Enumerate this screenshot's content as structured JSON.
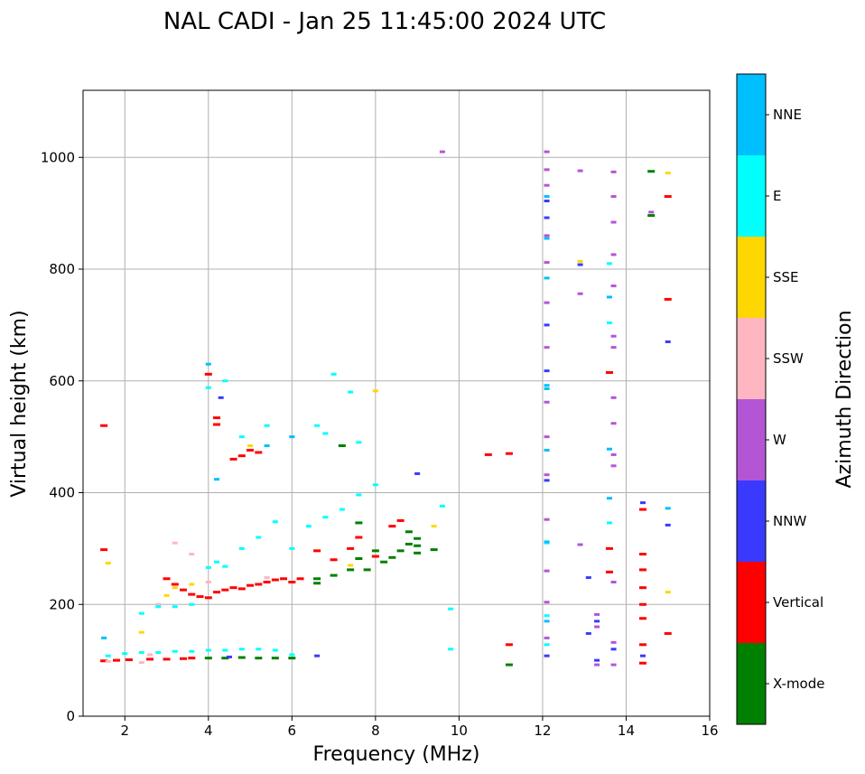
{
  "chart_data": {
    "type": "scatter",
    "title": "NAL CADI - Jan 25 11:45:00 2024 UTC",
    "xlabel": "Frequency (MHz)",
    "ylabel": "Virtual height (km)",
    "xlim": [
      1,
      16
    ],
    "ylim": [
      0,
      1120
    ],
    "xticks": [
      2,
      4,
      6,
      8,
      10,
      12,
      14,
      16
    ],
    "yticks": [
      0,
      200,
      400,
      600,
      800,
      1000
    ],
    "grid": true,
    "colorbar": {
      "label": "Azimuth Direction",
      "categories": [
        {
          "name": "X-mode",
          "color": "#008000"
        },
        {
          "name": "Vertical",
          "color": "#ff0000"
        },
        {
          "name": "NNW",
          "color": "#3a3aff"
        },
        {
          "name": "W",
          "color": "#b455d6"
        },
        {
          "name": "SSW",
          "color": "#ffb6c1"
        },
        {
          "name": "SSE",
          "color": "#ffd700"
        },
        {
          "name": "E",
          "color": "#00ffff"
        },
        {
          "name": "NNE",
          "color": "#00bfff"
        }
      ]
    },
    "series": [
      {
        "name": "X-mode",
        "points": [
          [
            4.0,
            104
          ],
          [
            4.4,
            104
          ],
          [
            4.8,
            105
          ],
          [
            5.2,
            104
          ],
          [
            5.6,
            104
          ],
          [
            6.0,
            104
          ],
          [
            6.6,
            238
          ],
          [
            7.0,
            252
          ],
          [
            7.4,
            262
          ],
          [
            7.6,
            282
          ],
          [
            7.8,
            262
          ],
          [
            8.0,
            296
          ],
          [
            8.2,
            276
          ],
          [
            8.4,
            284
          ],
          [
            8.6,
            296
          ],
          [
            8.8,
            308
          ],
          [
            9.0,
            318
          ],
          [
            9.0,
            292
          ],
          [
            9.4,
            298
          ],
          [
            6.6,
            246
          ],
          [
            7.2,
            484
          ],
          [
            7.6,
            346
          ],
          [
            8.8,
            330
          ],
          [
            9.0,
            305
          ],
          [
            11.2,
            92
          ],
          [
            14.6,
            896
          ],
          [
            14.6,
            975
          ]
        ]
      },
      {
        "name": "Vertical",
        "points": [
          [
            1.5,
            99
          ],
          [
            1.8,
            100
          ],
          [
            2.1,
            101
          ],
          [
            2.6,
            102
          ],
          [
            3.0,
            102
          ],
          [
            3.4,
            103
          ],
          [
            3.6,
            104
          ],
          [
            3.0,
            246
          ],
          [
            3.2,
            236
          ],
          [
            3.4,
            226
          ],
          [
            3.6,
            218
          ],
          [
            3.8,
            214
          ],
          [
            4.0,
            212
          ],
          [
            4.2,
            222
          ],
          [
            4.4,
            226
          ],
          [
            4.6,
            230
          ],
          [
            4.8,
            228
          ],
          [
            5.0,
            234
          ],
          [
            5.2,
            236
          ],
          [
            5.4,
            240
          ],
          [
            5.6,
            244
          ],
          [
            5.8,
            246
          ],
          [
            6.0,
            240
          ],
          [
            6.2,
            246
          ],
          [
            4.2,
            534
          ],
          [
            4.2,
            522
          ],
          [
            4.6,
            460
          ],
          [
            4.8,
            466
          ],
          [
            5.0,
            476
          ],
          [
            5.2,
            472
          ],
          [
            6.6,
            296
          ],
          [
            7.0,
            280
          ],
          [
            7.4,
            300
          ],
          [
            7.6,
            320
          ],
          [
            8.0,
            286
          ],
          [
            8.4,
            340
          ],
          [
            8.6,
            350
          ],
          [
            10.7,
            468
          ],
          [
            11.2,
            470
          ],
          [
            11.2,
            128
          ],
          [
            13.6,
            615
          ],
          [
            13.6,
            300
          ],
          [
            13.6,
            258
          ],
          [
            14.4,
            370
          ],
          [
            14.4,
            290
          ],
          [
            14.4,
            262
          ],
          [
            14.4,
            230
          ],
          [
            14.4,
            200
          ],
          [
            14.4,
            128
          ],
          [
            14.4,
            95
          ],
          [
            14.4,
            175
          ],
          [
            15.0,
            930
          ],
          [
            15.0,
            746
          ],
          [
            15.0,
            148
          ],
          [
            4.0,
            612
          ],
          [
            1.5,
            520
          ],
          [
            1.5,
            298
          ]
        ]
      },
      {
        "name": "NNW",
        "points": [
          [
            4.3,
            570
          ],
          [
            4.5,
            106
          ],
          [
            6.6,
            108
          ],
          [
            12.1,
            922
          ],
          [
            12.1,
            892
          ],
          [
            12.1,
            700
          ],
          [
            12.1,
            618
          ],
          [
            12.1,
            422
          ],
          [
            12.1,
            108
          ],
          [
            12.9,
            808
          ],
          [
            13.1,
            248
          ],
          [
            13.1,
            148
          ],
          [
            13.3,
            170
          ],
          [
            13.3,
            100
          ],
          [
            13.7,
            120
          ],
          [
            14.4,
            382
          ],
          [
            14.4,
            108
          ],
          [
            15.0,
            670
          ],
          [
            15.0,
            342
          ],
          [
            9.0,
            434
          ]
        ]
      },
      {
        "name": "W",
        "points": [
          [
            12.1,
            1010
          ],
          [
            12.1,
            978
          ],
          [
            12.1,
            950
          ],
          [
            12.1,
            860
          ],
          [
            12.1,
            812
          ],
          [
            12.1,
            740
          ],
          [
            12.1,
            660
          ],
          [
            12.1,
            562
          ],
          [
            12.1,
            500
          ],
          [
            12.1,
            432
          ],
          [
            12.1,
            352
          ],
          [
            12.1,
            260
          ],
          [
            12.1,
            204
          ],
          [
            12.1,
            140
          ],
          [
            12.9,
            976
          ],
          [
            12.9,
            756
          ],
          [
            12.9,
            307
          ],
          [
            13.3,
            182
          ],
          [
            13.3,
            160
          ],
          [
            13.3,
            92
          ],
          [
            13.7,
            974
          ],
          [
            13.7,
            930
          ],
          [
            13.7,
            884
          ],
          [
            13.7,
            826
          ],
          [
            13.7,
            770
          ],
          [
            13.7,
            680
          ],
          [
            13.7,
            660
          ],
          [
            13.7,
            570
          ],
          [
            13.7,
            524
          ],
          [
            13.7,
            468
          ],
          [
            13.7,
            448
          ],
          [
            13.7,
            240
          ],
          [
            13.7,
            132
          ],
          [
            13.7,
            92
          ],
          [
            14.6,
            902
          ],
          [
            9.6,
            1010
          ]
        ]
      },
      {
        "name": "SSW",
        "points": [
          [
            1.6,
            98
          ],
          [
            2.4,
            96
          ],
          [
            2.6,
            110
          ],
          [
            2.8,
            200
          ],
          [
            3.2,
            310
          ],
          [
            3.6,
            290
          ],
          [
            4.0,
            240
          ],
          [
            5.4,
            248
          ],
          [
            6.0,
            500
          ]
        ]
      },
      {
        "name": "SSE",
        "points": [
          [
            1.6,
            274
          ],
          [
            2.4,
            150
          ],
          [
            3.0,
            216
          ],
          [
            3.2,
            230
          ],
          [
            3.6,
            236
          ],
          [
            5.0,
            484
          ],
          [
            7.4,
            270
          ],
          [
            8.0,
            582
          ],
          [
            9.4,
            340
          ],
          [
            12.9,
            814
          ],
          [
            15.0,
            972
          ],
          [
            15.0,
            222
          ]
        ]
      },
      {
        "name": "E",
        "points": [
          [
            1.6,
            108
          ],
          [
            2.0,
            112
          ],
          [
            2.4,
            114
          ],
          [
            2.8,
            114
          ],
          [
            3.2,
            116
          ],
          [
            3.6,
            116
          ],
          [
            4.0,
            118
          ],
          [
            4.4,
            118
          ],
          [
            4.8,
            120
          ],
          [
            5.2,
            120
          ],
          [
            5.6,
            118
          ],
          [
            6.0,
            110
          ],
          [
            2.4,
            184
          ],
          [
            2.8,
            196
          ],
          [
            3.2,
            196
          ],
          [
            3.6,
            200
          ],
          [
            4.0,
            266
          ],
          [
            4.2,
            276
          ],
          [
            4.4,
            268
          ],
          [
            4.8,
            300
          ],
          [
            5.2,
            320
          ],
          [
            5.6,
            348
          ],
          [
            6.0,
            300
          ],
          [
            6.4,
            340
          ],
          [
            6.8,
            356
          ],
          [
            7.2,
            370
          ],
          [
            7.6,
            396
          ],
          [
            8.0,
            414
          ],
          [
            4.0,
            588
          ],
          [
            4.4,
            600
          ],
          [
            4.8,
            500
          ],
          [
            5.4,
            520
          ],
          [
            6.6,
            520
          ],
          [
            7.0,
            612
          ],
          [
            7.4,
            580
          ],
          [
            6.8,
            506
          ],
          [
            7.6,
            490
          ],
          [
            9.8,
            192
          ],
          [
            9.8,
            120
          ],
          [
            9.6,
            376
          ],
          [
            12.1,
            310
          ],
          [
            12.1,
            180
          ],
          [
            12.1,
            128
          ],
          [
            13.6,
            346
          ],
          [
            13.6,
            810
          ],
          [
            13.6,
            704
          ]
        ]
      },
      {
        "name": "NNE",
        "points": [
          [
            1.5,
            140
          ],
          [
            4.0,
            630
          ],
          [
            4.2,
            424
          ],
          [
            5.4,
            484
          ],
          [
            6.0,
            500
          ],
          [
            12.1,
            930
          ],
          [
            12.1,
            855
          ],
          [
            12.1,
            784
          ],
          [
            12.1,
            592
          ],
          [
            12.1,
            586
          ],
          [
            12.1,
            476
          ],
          [
            12.1,
            312
          ],
          [
            12.1,
            170
          ],
          [
            13.6,
            750
          ],
          [
            13.6,
            478
          ],
          [
            13.6,
            390
          ],
          [
            15.0,
            372
          ]
        ]
      }
    ]
  }
}
